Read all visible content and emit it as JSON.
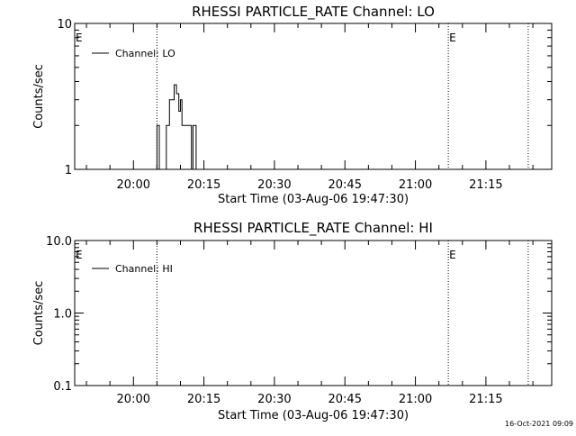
{
  "chart_data": [
    {
      "type": "line",
      "title": "RHESSI PARTICLE_RATE Channel: LO",
      "xlabel": "Start Time (03-Aug-06 19:47:30)",
      "ylabel": "Counts/sec",
      "yscale": "log",
      "ylim": [
        1,
        10
      ],
      "y_tick_labels": [
        "1",
        "10"
      ],
      "xlim": [
        "19:47:30",
        "21:29:00"
      ],
      "x_tick_labels": [
        "20:00",
        "20:15",
        "20:30",
        "20:45",
        "21:00",
        "21:15"
      ],
      "legend": {
        "placement": "top-left",
        "entries": [
          "Channel: LO"
        ]
      },
      "markers": [
        {
          "label": "E",
          "time": "19:47:30",
          "line": false
        },
        {
          "label": "",
          "time": "20:05:00",
          "line": true
        },
        {
          "label": "E",
          "time": "21:07:00",
          "line": true
        },
        {
          "label": "",
          "time": "21:24:00",
          "line": true
        }
      ],
      "series": [
        {
          "name": "Channel: LO",
          "x": [
            "20:05:00",
            "20:05:00",
            "20:05:30",
            "20:05:30",
            "20:07:00",
            "20:07:00",
            "20:07:40",
            "20:07:40",
            "20:08:10",
            "20:08:10",
            "20:08:40",
            "20:08:40",
            "20:09:10",
            "20:09:10",
            "20:09:40",
            "20:09:40",
            "20:10:00",
            "20:10:00",
            "20:10:20",
            "20:10:20",
            "20:11:00",
            "20:11:00",
            "20:11:20",
            "20:11:20",
            "20:12:20",
            "20:12:20",
            "20:12:40",
            "20:12:40",
            "20:13:20",
            "20:13:20",
            "20:13:40",
            "20:13:40"
          ],
          "y": [
            1,
            2,
            2,
            1,
            1,
            2,
            2,
            3,
            3,
            3,
            3,
            3.8,
            3.8,
            3.3,
            3.3,
            2.5,
            2.5,
            3,
            3,
            2,
            2,
            2,
            2,
            2,
            2,
            1,
            1,
            2,
            2,
            1,
            1,
            1
          ]
        }
      ]
    },
    {
      "type": "line",
      "title": "RHESSI PARTICLE_RATE Channel: HI",
      "xlabel": "Start Time (03-Aug-06 19:47:30)",
      "ylabel": "Counts/sec",
      "yscale": "log",
      "ylim": [
        0.1,
        10
      ],
      "y_tick_labels": [
        "0.1",
        "1.0",
        "10.0"
      ],
      "xlim": [
        "19:47:30",
        "21:29:00"
      ],
      "x_tick_labels": [
        "20:00",
        "20:15",
        "20:30",
        "20:45",
        "21:00",
        "21:15"
      ],
      "legend": {
        "placement": "top-left",
        "entries": [
          "Channel: HI"
        ]
      },
      "markers": [
        {
          "label": "E",
          "time": "19:47:30",
          "line": false
        },
        {
          "label": "",
          "time": "20:05:00",
          "line": true
        },
        {
          "label": "E",
          "time": "21:07:00",
          "line": true
        },
        {
          "label": "",
          "time": "21:24:00",
          "line": true
        }
      ],
      "series": [
        {
          "name": "Channel: HI",
          "x": [],
          "y": []
        }
      ]
    }
  ],
  "footer": {
    "timestamp": "16-Oct-2021 09:09"
  }
}
